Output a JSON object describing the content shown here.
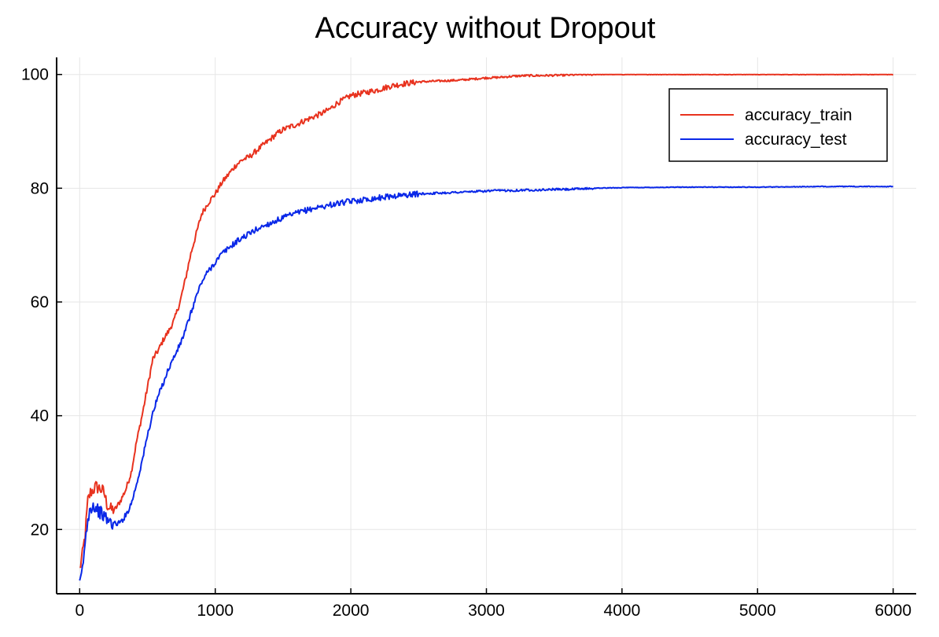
{
  "chart_data": {
    "type": "line",
    "title": "Accuracy without Dropout",
    "xlabel": "",
    "ylabel": "",
    "xlim": [
      -170,
      6170
    ],
    "ylim": [
      8.7,
      103
    ],
    "xticks": [
      0,
      1000,
      2000,
      3000,
      4000,
      5000,
      6000
    ],
    "yticks": [
      20,
      40,
      60,
      80,
      100
    ],
    "grid": true,
    "legend_position": "top-right",
    "series": [
      {
        "name": "accuracy_train",
        "color": "#e8321e",
        "x": [
          0,
          20,
          40,
          60,
          80,
          100,
          120,
          150,
          180,
          200,
          230,
          260,
          300,
          340,
          380,
          420,
          460,
          500,
          540,
          580,
          620,
          660,
          700,
          740,
          780,
          820,
          860,
          900,
          950,
          1000,
          1050,
          1100,
          1150,
          1200,
          1250,
          1300,
          1350,
          1400,
          1450,
          1500,
          1550,
          1600,
          1650,
          1700,
          1750,
          1800,
          1850,
          1900,
          1950,
          2000,
          2100,
          2200,
          2300,
          2400,
          2500,
          2600,
          2700,
          2800,
          2900,
          3000,
          3100,
          3200,
          3300,
          3400,
          3500,
          3600,
          3700,
          3800,
          4000,
          4500,
          5000,
          5500,
          6000
        ],
        "values": [
          13,
          15.5,
          19,
          25,
          26.5,
          27,
          27.5,
          27.2,
          26.5,
          24.5,
          23.5,
          23.5,
          25,
          27,
          30,
          35.5,
          40,
          45,
          50,
          51.5,
          53.5,
          55,
          57,
          60,
          64,
          68.5,
          72,
          75.5,
          77.5,
          79,
          81,
          82.5,
          84,
          85,
          85.5,
          86.5,
          87.5,
          88.5,
          89.5,
          90.3,
          90.8,
          91.2,
          91.8,
          92.3,
          92.8,
          93.3,
          94,
          95,
          95.6,
          96.3,
          96.8,
          97.3,
          98,
          98.4,
          98.7,
          98.8,
          98.9,
          99,
          99.2,
          99.4,
          99.5,
          99.7,
          99.8,
          99.8,
          99.85,
          99.9,
          100,
          100,
          100,
          100,
          100,
          100,
          100
        ]
      },
      {
        "name": "accuracy_test",
        "color": "#0a28e8",
        "x": [
          0,
          20,
          40,
          60,
          80,
          100,
          120,
          150,
          180,
          200,
          230,
          260,
          300,
          340,
          380,
          420,
          460,
          500,
          540,
          580,
          620,
          660,
          700,
          740,
          780,
          820,
          860,
          900,
          950,
          1000,
          1050,
          1100,
          1150,
          1200,
          1250,
          1300,
          1350,
          1400,
          1450,
          1500,
          1550,
          1600,
          1650,
          1700,
          1750,
          1800,
          1850,
          1900,
          1950,
          2000,
          2100,
          2200,
          2300,
          2400,
          2500,
          2600,
          2700,
          2800,
          2900,
          3000,
          3100,
          3200,
          3300,
          3400,
          3500,
          3600,
          3700,
          3800,
          4000,
          4500,
          5000,
          5500,
          6000
        ],
        "values": [
          10,
          13,
          17.5,
          22,
          24,
          24.2,
          23.8,
          23,
          22.3,
          21.8,
          21.2,
          21,
          21.2,
          22.5,
          24.5,
          28,
          32,
          36.5,
          40.5,
          43.5,
          46,
          48.5,
          50.5,
          52.5,
          55,
          58,
          61,
          63.5,
          65.5,
          67,
          68.5,
          69.5,
          70.5,
          71.3,
          72,
          72.7,
          73.3,
          73.8,
          74.3,
          74.8,
          75.2,
          75.6,
          76,
          76.3,
          76.6,
          76.8,
          77.1,
          77.3,
          77.5,
          77.7,
          78,
          78.3,
          78.6,
          78.8,
          79,
          79.1,
          79.2,
          79.3,
          79.4,
          79.5,
          79.6,
          79.6,
          79.7,
          79.7,
          79.8,
          79.8,
          79.9,
          80,
          80.1,
          80.2,
          80.2,
          80.3,
          80.3
        ]
      }
    ]
  }
}
